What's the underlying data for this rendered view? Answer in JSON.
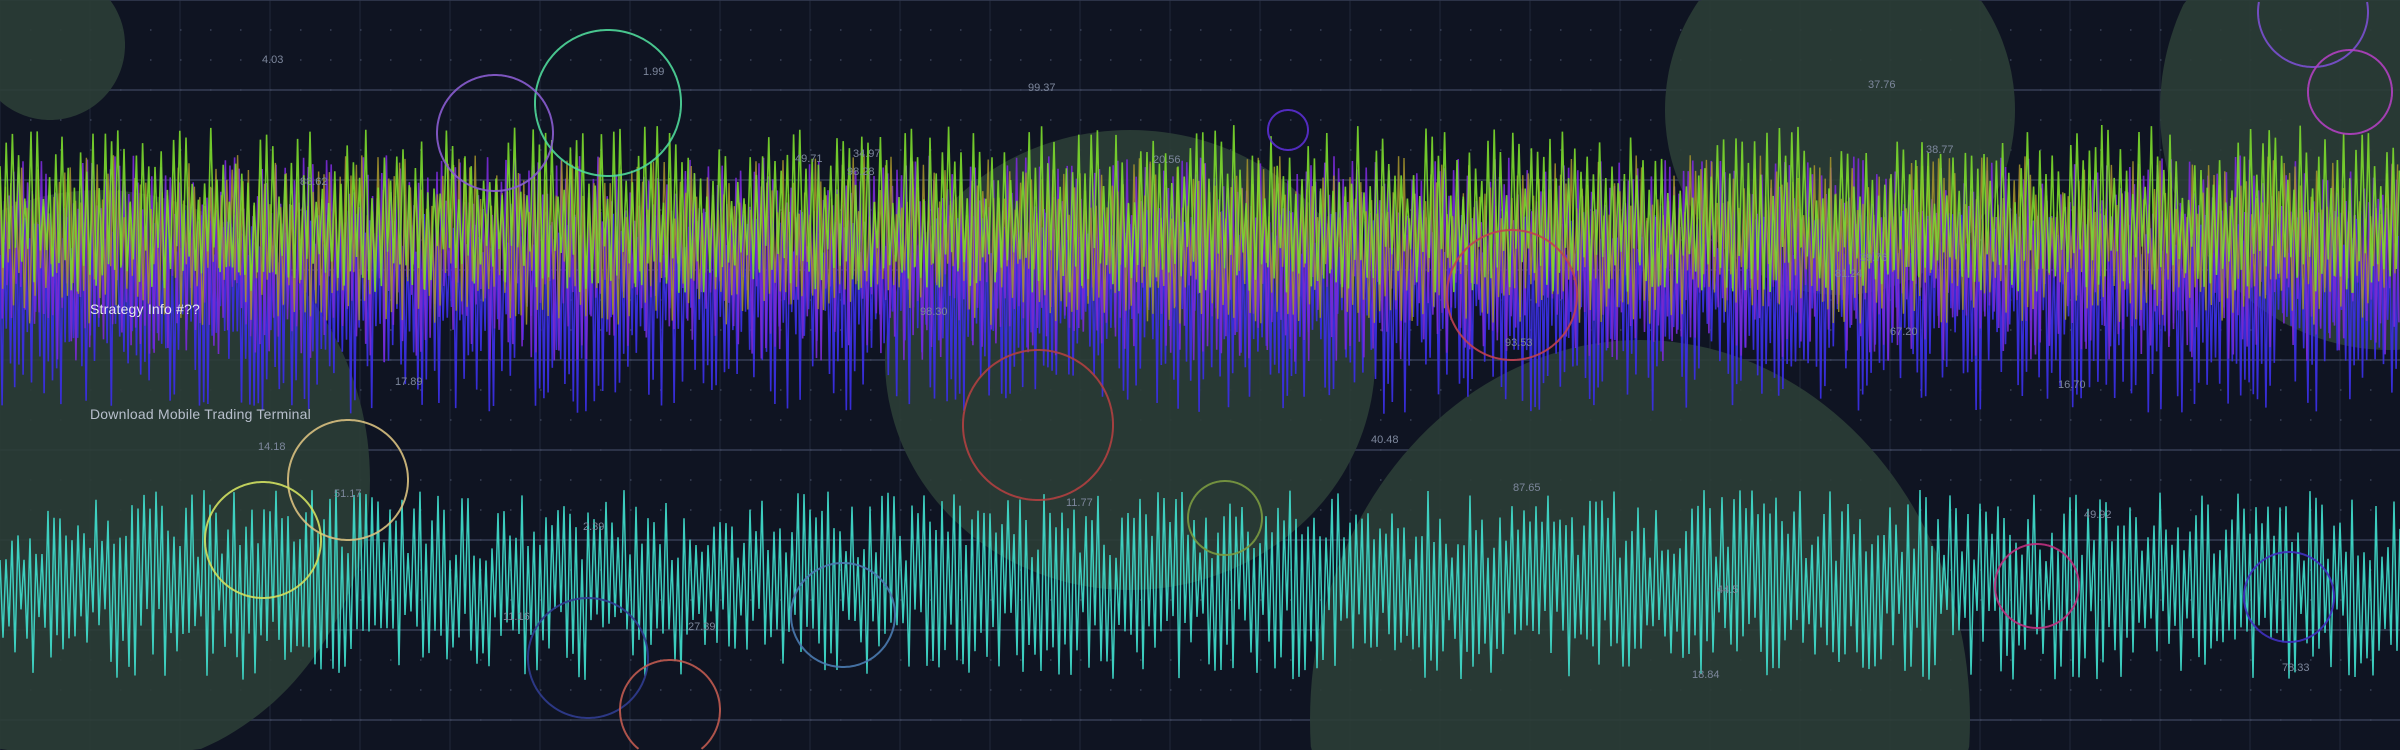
{
  "banner": {
    "strategy_label": "Strategy Info #??",
    "download_label": "Download Mobile Trading Terminal"
  },
  "colors": {
    "background": "#0f1422",
    "grid": "#2a3145",
    "blob": "#2b3d36",
    "series_green": "#7cdc2c",
    "series_olive": "#a8962c",
    "series_purple": "#7a2ad8",
    "series_blue": "#3a2ee0",
    "series_teal": "#3fd8c8"
  },
  "value_labels": [
    "4.03",
    "1.99",
    "99.37",
    "88.62",
    "49.71",
    "34.97",
    "98.28",
    "20.56",
    "37.76",
    "38.77",
    "98.30",
    "93.53",
    "39.76",
    "81.24",
    "67.20",
    "17.89",
    "16.70",
    "40.48",
    "14.18",
    "51.17",
    "11.77",
    "87.65",
    "2.39",
    "49.92",
    "44.5",
    "11.16",
    "27.39",
    "18.84",
    "78.33"
  ]
}
